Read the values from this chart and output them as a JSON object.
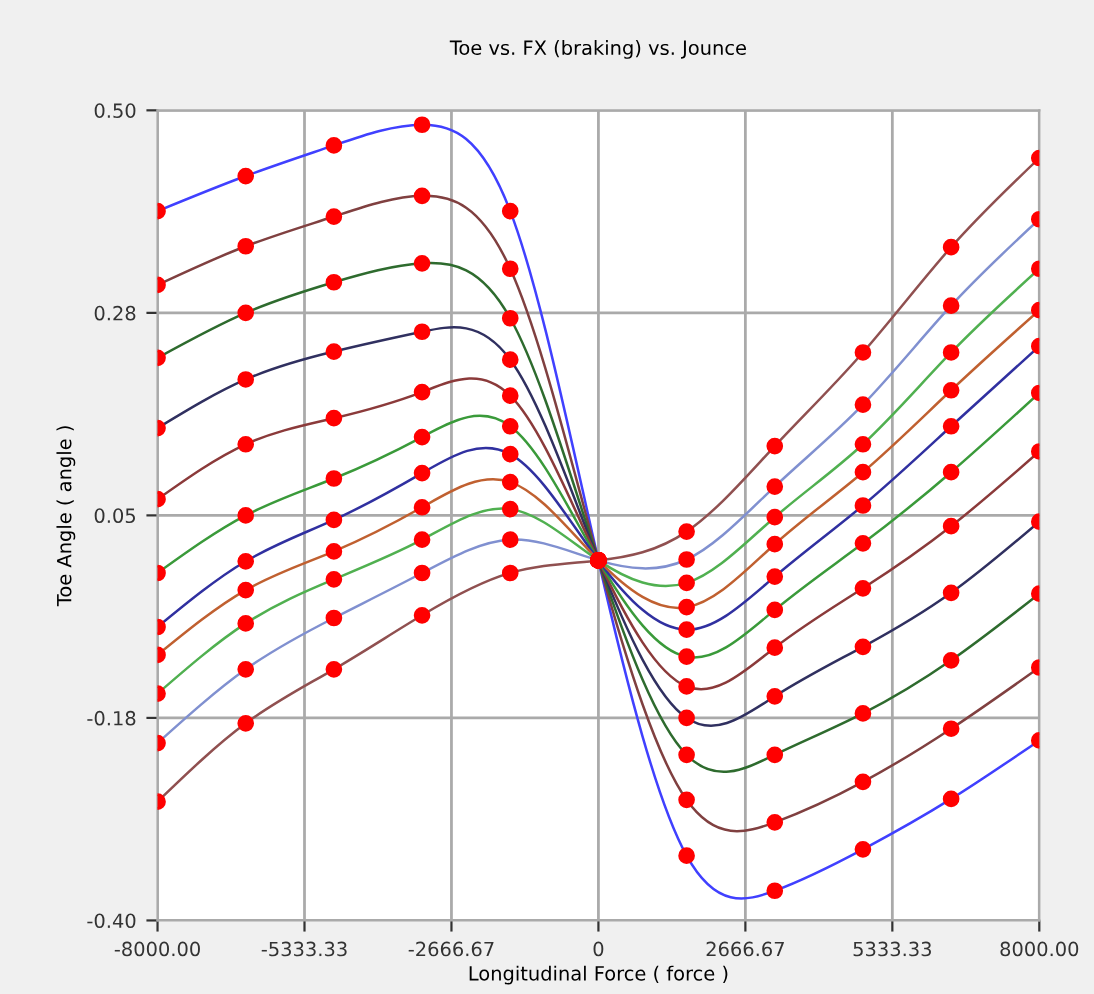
{
  "chart_data": {
    "type": "line",
    "title": "Toe vs. FX (braking) vs. Jounce",
    "xlabel": "Longitudinal Force ( force )",
    "ylabel": "Toe Angle ( angle )",
    "x": [
      -8000,
      -6400,
      -4800,
      -3200,
      -1600,
      0,
      1600,
      3200,
      4800,
      6400,
      8000
    ],
    "series": [
      {
        "color": "#4040ff",
        "values": [
          0.388,
          0.427,
          0.461,
          0.484,
          0.388,
          0,
          -0.328,
          -0.367,
          -0.321,
          -0.265,
          -0.2
        ]
      },
      {
        "color": "#804040",
        "values": [
          0.306,
          0.349,
          0.382,
          0.405,
          0.324,
          0,
          -0.266,
          -0.291,
          -0.246,
          -0.187,
          -0.119
        ]
      },
      {
        "color": "#2e6b2e",
        "values": [
          0.225,
          0.275,
          0.309,
          0.33,
          0.269,
          0,
          -0.216,
          -0.216,
          -0.17,
          -0.111,
          -0.037
        ]
      },
      {
        "color": "#303060",
        "values": [
          0.147,
          0.201,
          0.232,
          0.254,
          0.223,
          0,
          -0.175,
          -0.151,
          -0.096,
          -0.036,
          0.043
        ]
      },
      {
        "color": "#8b3a3a",
        "values": [
          0.068,
          0.129,
          0.158,
          0.187,
          0.183,
          0,
          -0.14,
          -0.097,
          -0.031,
          0.038,
          0.121
        ]
      },
      {
        "color": "#3a9a3a",
        "values": [
          -0.014,
          0.05,
          0.091,
          0.137,
          0.149,
          0,
          -0.107,
          -0.055,
          0.019,
          0.098,
          0.186
        ]
      },
      {
        "color": "#3030a0",
        "values": [
          -0.074,
          -0.001,
          0.045,
          0.097,
          0.118,
          0,
          -0.077,
          -0.018,
          0.061,
          0.149,
          0.238
        ]
      },
      {
        "color": "#c06030",
        "values": [
          -0.105,
          -0.033,
          0.01,
          0.059,
          0.087,
          0,
          -0.052,
          0.018,
          0.098,
          0.189,
          0.278
        ]
      },
      {
        "color": "#50b050",
        "values": [
          -0.148,
          -0.07,
          -0.021,
          0.023,
          0.057,
          0,
          -0.025,
          0.048,
          0.129,
          0.231,
          0.324
        ]
      },
      {
        "color": "#8090d0",
        "values": [
          -0.203,
          -0.121,
          -0.064,
          -0.014,
          0.023,
          0,
          0.001,
          0.082,
          0.173,
          0.283,
          0.379
        ]
      },
      {
        "color": "#905050",
        "values": [
          -0.268,
          -0.181,
          -0.121,
          -0.061,
          -0.014,
          0,
          0.032,
          0.127,
          0.231,
          0.348,
          0.447
        ]
      }
    ],
    "marker": "circle",
    "grid": true,
    "xlim": [
      -8000,
      8000
    ],
    "xticks": [
      {
        "value": -8000,
        "label": "-8000.00"
      },
      -5333.33,
      -2666.67,
      0,
      2666.67,
      5333.33,
      {
        "value": 8000,
        "label": "8000.00"
      }
    ],
    "ylim": [
      -0.4,
      0.5
    ],
    "yticks": [
      {
        "value": -0.4,
        "label": "-0.40"
      },
      {
        "value": -0.175,
        "label": "-0.18"
      },
      0.05,
      {
        "value": 0.275,
        "label": "0.28"
      },
      {
        "value": 0.5,
        "label": "0.50"
      }
    ]
  }
}
